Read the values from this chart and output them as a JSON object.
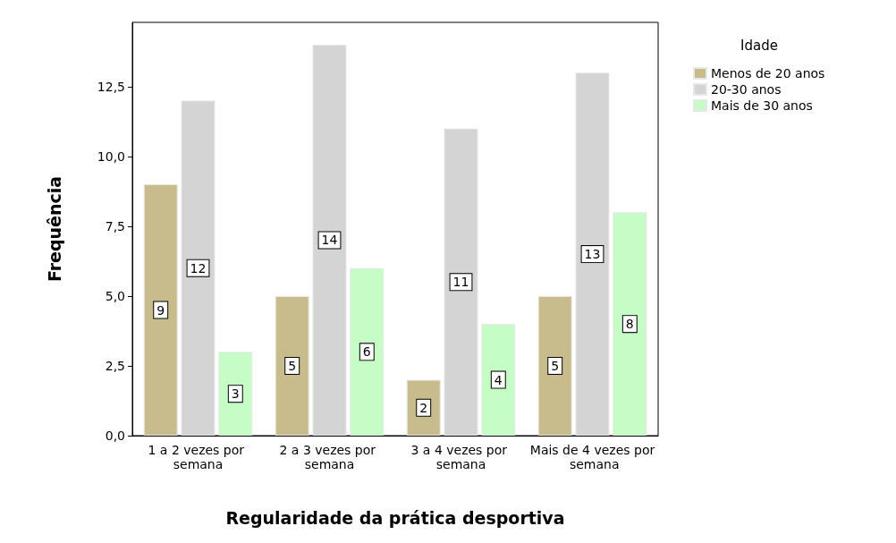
{
  "chart_data": {
    "type": "bar",
    "xlabel": "Regularidade da prática desportiva",
    "ylabel": "Frequência",
    "legend_title": "Idade",
    "categories": [
      "1 a 2 vezes por semana",
      "2 a 3 vezes por semana",
      "3 a 4 vezes por semana",
      "Mais de 4 vezes por semana"
    ],
    "series": [
      {
        "name": "Menos de 20 anos",
        "color": "#c8bc8c",
        "values": [
          9,
          5,
          2,
          5
        ]
      },
      {
        "name": "20-30 anos",
        "color": "#d4d4d4",
        "values": [
          12,
          14,
          11,
          13
        ]
      },
      {
        "name": "Mais de 30 anos",
        "color": "#c6fcc6",
        "values": [
          3,
          6,
          4,
          8
        ]
      }
    ],
    "ylim": [
      0,
      14.8
    ],
    "yticks": [
      {
        "value": 0,
        "label": "0,0"
      },
      {
        "value": 2.5,
        "label": "2,5"
      },
      {
        "value": 5,
        "label": "5,0"
      },
      {
        "value": 7.5,
        "label": "7,5"
      },
      {
        "value": 10,
        "label": "10,0"
      },
      {
        "value": 12.5,
        "label": "12,5"
      }
    ],
    "data_labels": true,
    "legend": "top right",
    "grid": false
  }
}
